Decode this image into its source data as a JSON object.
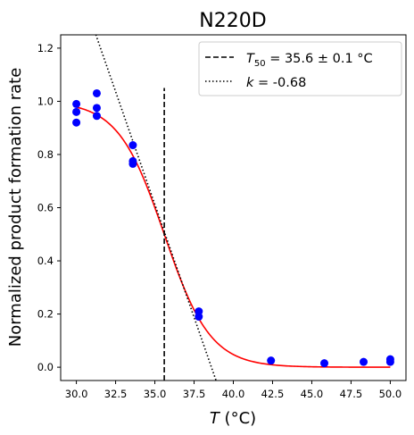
{
  "chart_data": {
    "type": "scatter",
    "title": "N220D",
    "xlabel": "T (°C)",
    "xlabel_italic": "T",
    "xlabel_unit": " (°C)",
    "ylabel": "Normalized product formation rate",
    "xlim": [
      29.0,
      51.0
    ],
    "ylim": [
      -0.05,
      1.25
    ],
    "x_ticks": [
      30.0,
      32.5,
      35.0,
      37.5,
      40.0,
      42.5,
      45.0,
      47.5,
      50.0
    ],
    "x_tick_labels": [
      "30.0",
      "32.5",
      "35.0",
      "37.5",
      "40.0",
      "42.5",
      "45.0",
      "47.5",
      "50.0"
    ],
    "y_ticks": [
      0.0,
      0.2,
      0.4,
      0.6,
      0.8,
      1.0,
      1.2
    ],
    "y_tick_labels": [
      "0.0",
      "0.2",
      "0.4",
      "0.6",
      "0.8",
      "1.0",
      "1.2"
    ],
    "grid": false,
    "legend_position": "top-right",
    "points": {
      "color": "#0000ff",
      "x": [
        30.0,
        30.0,
        30.0,
        31.3,
        31.3,
        31.3,
        33.6,
        33.6,
        33.6,
        37.8,
        37.8,
        42.4,
        45.8,
        48.3,
        50.0,
        50.0
      ],
      "y": [
        0.99,
        0.96,
        0.92,
        1.03,
        0.975,
        0.945,
        0.835,
        0.775,
        0.765,
        0.21,
        0.19,
        0.025,
        0.015,
        0.02,
        0.02,
        0.03
      ]
    },
    "fit_curve": {
      "color": "#ff0000",
      "type": "logistic",
      "top": 1.0,
      "midpoint": 35.6,
      "slope": 0.68
    },
    "series": [
      {
        "name_prefix": "T",
        "name_subscript": "50",
        "name_suffix": " = 35.6 ± 0.1 °C",
        "style": "dashed",
        "color": "#000000",
        "x": 35.6,
        "y_range": [
          -0.05,
          1.05
        ]
      },
      {
        "name_prefix": "k",
        "name_subscript": "",
        "name_suffix": " = -0.68",
        "style": "dotted",
        "color": "#000000",
        "x": [
          30.79,
          38.9
        ],
        "y": [
          1.327,
          -0.05
        ]
      }
    ]
  }
}
